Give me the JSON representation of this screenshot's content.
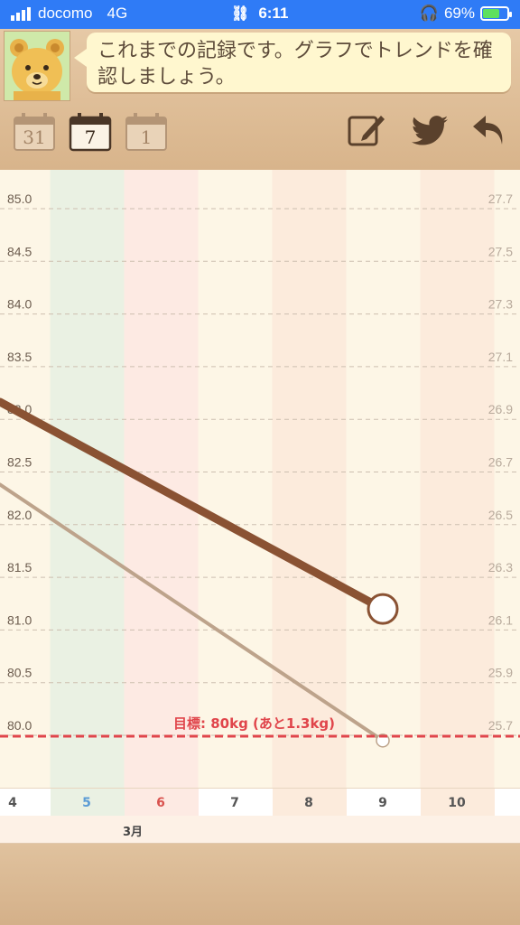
{
  "status_bar": {
    "carrier": "docomo",
    "network": "4G",
    "time": "6:11",
    "battery": "69%",
    "battery_level": 0.69
  },
  "header": {
    "message": "これまでの記録です。グラフでトレンドを確認しましょう。",
    "period_buttons": [
      "31",
      "7",
      "1"
    ],
    "selected_period": "7"
  },
  "toolbar": {
    "icons": [
      "edit-icon",
      "twitter-icon",
      "back-icon"
    ]
  },
  "colors": {
    "weight_line": "#8a5233",
    "bmi_line": "#bda38b",
    "goal_line": "#e0454b",
    "background": "#fdf6e6"
  },
  "chart_data": {
    "type": "line",
    "x_categories": [
      "4",
      "5",
      "6",
      "7",
      "8",
      "9",
      "10"
    ],
    "x_month_label": "3月",
    "y_left_ticks": [
      "85.0",
      "84.5",
      "84.0",
      "83.5",
      "83.0",
      "82.5",
      "82.0",
      "81.5",
      "81.0",
      "80.5",
      "80.0"
    ],
    "y_right_ticks": [
      "27.7",
      "27.5",
      "27.3",
      "27.1",
      "26.9",
      "26.7",
      "26.5",
      "26.3",
      "26.1",
      "25.9",
      "25.7"
    ],
    "ylim_left": [
      80.0,
      85.0
    ],
    "series": [
      {
        "points": [
          {
            "x": "4",
            "y": 83.1
          },
          {
            "x": "9",
            "y": 81.2
          }
        ]
      },
      {
        "points": [
          {
            "x": "4",
            "y": 82.3
          },
          {
            "x": "9",
            "y": 79.95
          }
        ]
      }
    ],
    "goal": {
      "value": 80.0,
      "label": "目標: 80kg (あと1.3kg)"
    }
  }
}
